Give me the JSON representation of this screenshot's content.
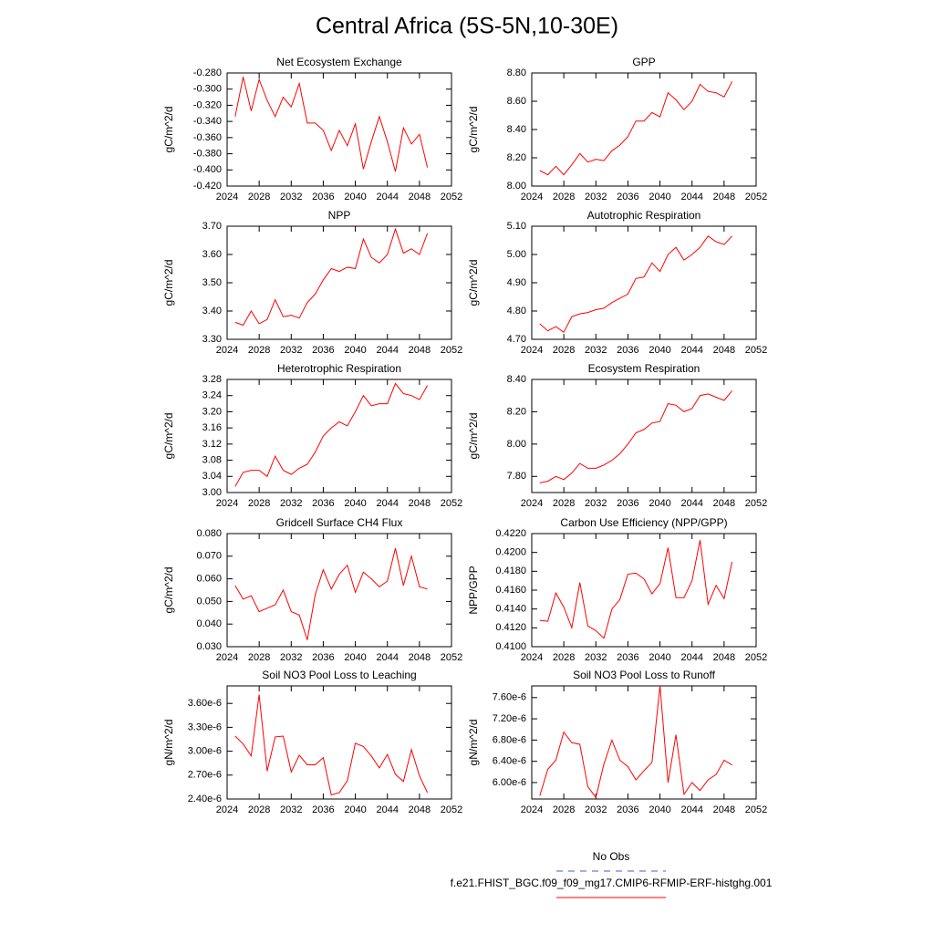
{
  "title": "Central Africa (5S-5N,10-30E)",
  "legend": [
    {
      "name": "No Obs",
      "color": "#5555cc",
      "dashed": true
    },
    {
      "name": "f.e21.FHIST_BGC.f09_f09_mg17.CMIP6-RFMIP-ERF-histghg.001",
      "color": "#ff0000",
      "dashed": false
    }
  ],
  "chart_data": [
    {
      "type": "line",
      "title": "Net Ecosystem Exchange",
      "ylabel": "gC/m^2/d",
      "color": "#ff0000",
      "x": [
        2025,
        2026,
        2027,
        2028,
        2029,
        2030,
        2031,
        2032,
        2033,
        2034,
        2035,
        2036,
        2037,
        2038,
        2039,
        2040,
        2041,
        2042,
        2043,
        2044,
        2045,
        2046,
        2047,
        2048,
        2049
      ],
      "values": [
        -0.334,
        -0.285,
        -0.327,
        -0.288,
        -0.314,
        -0.334,
        -0.31,
        -0.322,
        -0.293,
        -0.342,
        -0.342,
        -0.351,
        -0.376,
        -0.351,
        -0.37,
        -0.343,
        -0.399,
        -0.365,
        -0.334,
        -0.365,
        -0.402,
        -0.348,
        -0.368,
        -0.356,
        -0.397
      ],
      "xlim": [
        2024,
        2052
      ],
      "xticks": [
        2024,
        2028,
        2032,
        2036,
        2040,
        2044,
        2048,
        2052
      ],
      "ylim": [
        -0.42,
        -0.28
      ],
      "yticks": [
        {
          "value": -0.42,
          "label": "-0.420"
        },
        {
          "value": -0.4,
          "label": "-0.400"
        },
        {
          "value": -0.38,
          "label": "-0.380"
        },
        {
          "value": -0.36,
          "label": "-0.360"
        },
        {
          "value": -0.34,
          "label": "-0.340"
        },
        {
          "value": -0.32,
          "label": "-0.320"
        },
        {
          "value": -0.3,
          "label": "-0.300"
        },
        {
          "value": -0.28,
          "label": "-0.280"
        }
      ]
    },
    {
      "type": "line",
      "title": "GPP",
      "ylabel": "gC/m^2/d",
      "color": "#ff0000",
      "x": [
        2025,
        2026,
        2027,
        2028,
        2029,
        2030,
        2031,
        2032,
        2033,
        2034,
        2035,
        2036,
        2037,
        2038,
        2039,
        2040,
        2041,
        2042,
        2043,
        2044,
        2045,
        2046,
        2047,
        2048,
        2049
      ],
      "values": [
        8.11,
        8.08,
        8.14,
        8.08,
        8.15,
        8.23,
        8.17,
        8.19,
        8.18,
        8.25,
        8.29,
        8.35,
        8.46,
        8.46,
        8.52,
        8.49,
        8.66,
        8.61,
        8.54,
        8.6,
        8.72,
        8.67,
        8.66,
        8.63,
        8.74
      ],
      "xlim": [
        2024,
        2052
      ],
      "xticks": [
        2024,
        2028,
        2032,
        2036,
        2040,
        2044,
        2048,
        2052
      ],
      "ylim": [
        8.0,
        8.8
      ],
      "yticks": [
        {
          "value": 8.0,
          "label": "8.00"
        },
        {
          "value": 8.2,
          "label": "8.20"
        },
        {
          "value": 8.4,
          "label": "8.40"
        },
        {
          "value": 8.6,
          "label": "8.60"
        },
        {
          "value": 8.8,
          "label": "8.80"
        }
      ]
    },
    {
      "type": "line",
      "title": "NPP",
      "ylabel": "gC/m^2/d",
      "color": "#ff0000",
      "x": [
        2025,
        2026,
        2027,
        2028,
        2029,
        2030,
        2031,
        2032,
        2033,
        2034,
        2035,
        2036,
        2037,
        2038,
        2039,
        2040,
        2041,
        2042,
        2043,
        2044,
        2045,
        2046,
        2047,
        2048,
        2049
      ],
      "values": [
        3.36,
        3.35,
        3.4,
        3.355,
        3.37,
        3.44,
        3.38,
        3.385,
        3.375,
        3.43,
        3.46,
        3.51,
        3.55,
        3.54,
        3.555,
        3.55,
        3.655,
        3.59,
        3.57,
        3.6,
        3.69,
        3.605,
        3.62,
        3.6,
        3.675
      ],
      "xlim": [
        2024,
        2052
      ],
      "xticks": [
        2024,
        2028,
        2032,
        2036,
        2040,
        2044,
        2048,
        2052
      ],
      "ylim": [
        3.3,
        3.7
      ],
      "yticks": [
        {
          "value": 3.3,
          "label": "3.30"
        },
        {
          "value": 3.4,
          "label": "3.40"
        },
        {
          "value": 3.5,
          "label": "3.50"
        },
        {
          "value": 3.6,
          "label": "3.60"
        },
        {
          "value": 3.7,
          "label": "3.70"
        }
      ]
    },
    {
      "type": "line",
      "title": "Autotrophic Respiration",
      "ylabel": "gC/m^2/d",
      "color": "#ff0000",
      "x": [
        2025,
        2026,
        2027,
        2028,
        2029,
        2030,
        2031,
        2032,
        2033,
        2034,
        2035,
        2036,
        2037,
        2038,
        2039,
        2040,
        2041,
        2042,
        2043,
        2044,
        2045,
        2046,
        2047,
        2048,
        2049
      ],
      "values": [
        4.755,
        4.73,
        4.745,
        4.725,
        4.78,
        4.79,
        4.795,
        4.805,
        4.81,
        4.83,
        4.845,
        4.86,
        4.915,
        4.92,
        4.97,
        4.94,
        5.0,
        5.025,
        4.98,
        5.0,
        5.025,
        5.065,
        5.045,
        5.035,
        5.065
      ],
      "xlim": [
        2024,
        2052
      ],
      "xticks": [
        2024,
        2028,
        2032,
        2036,
        2040,
        2044,
        2048,
        2052
      ],
      "ylim": [
        4.7,
        5.1
      ],
      "yticks": [
        {
          "value": 4.7,
          "label": "4.70"
        },
        {
          "value": 4.8,
          "label": "4.80"
        },
        {
          "value": 4.9,
          "label": "4.90"
        },
        {
          "value": 5.0,
          "label": "5.00"
        },
        {
          "value": 5.1,
          "label": "5.10"
        }
      ]
    },
    {
      "type": "line",
      "title": "Heterotrophic Respiration",
      "ylabel": "gC/m^2/d",
      "color": "#ff0000",
      "x": [
        2025,
        2026,
        2027,
        2028,
        2029,
        2030,
        2031,
        2032,
        2033,
        2034,
        2035,
        2036,
        2037,
        2038,
        2039,
        2040,
        2041,
        2042,
        2043,
        2044,
        2045,
        2046,
        2047,
        2048,
        2049
      ],
      "values": [
        3.015,
        3.05,
        3.055,
        3.055,
        3.04,
        3.09,
        3.055,
        3.045,
        3.06,
        3.07,
        3.1,
        3.14,
        3.16,
        3.175,
        3.165,
        3.2,
        3.24,
        3.215,
        3.22,
        3.22,
        3.27,
        3.245,
        3.24,
        3.23,
        3.265
      ],
      "xlim": [
        2024,
        2052
      ],
      "xticks": [
        2024,
        2028,
        2032,
        2036,
        2040,
        2044,
        2048,
        2052
      ],
      "ylim": [
        3.0,
        3.28
      ],
      "yticks": [
        {
          "value": 3.0,
          "label": "3.00"
        },
        {
          "value": 3.04,
          "label": "3.04"
        },
        {
          "value": 3.08,
          "label": "3.08"
        },
        {
          "value": 3.12,
          "label": "3.12"
        },
        {
          "value": 3.16,
          "label": "3.16"
        },
        {
          "value": 3.2,
          "label": "3.20"
        },
        {
          "value": 3.24,
          "label": "3.24"
        },
        {
          "value": 3.28,
          "label": "3.28"
        }
      ]
    },
    {
      "type": "line",
      "title": "Ecosystem Respiration",
      "ylabel": "gC/m^2/d",
      "color": "#ff0000",
      "x": [
        2025,
        2026,
        2027,
        2028,
        2029,
        2030,
        2031,
        2032,
        2033,
        2034,
        2035,
        2036,
        2037,
        2038,
        2039,
        2040,
        2041,
        2042,
        2043,
        2044,
        2045,
        2046,
        2047,
        2048,
        2049
      ],
      "values": [
        7.76,
        7.77,
        7.8,
        7.78,
        7.82,
        7.88,
        7.85,
        7.85,
        7.87,
        7.9,
        7.94,
        8.0,
        8.07,
        8.09,
        8.13,
        8.14,
        8.25,
        8.24,
        8.2,
        8.22,
        8.3,
        8.31,
        8.29,
        8.27,
        8.33
      ],
      "xlim": [
        2024,
        2052
      ],
      "xticks": [
        2024,
        2028,
        2032,
        2036,
        2040,
        2044,
        2048,
        2052
      ],
      "ylim": [
        7.7,
        8.4
      ],
      "yticks": [
        {
          "value": 7.8,
          "label": "7.80"
        },
        {
          "value": 8.0,
          "label": "8.00"
        },
        {
          "value": 8.2,
          "label": "8.20"
        },
        {
          "value": 8.4,
          "label": "8.40"
        }
      ]
    },
    {
      "type": "line",
      "title": "Gridcell Surface CH4 Flux",
      "ylabel": "gC/m^2/d",
      "color": "#ff0000",
      "x": [
        2025,
        2026,
        2027,
        2028,
        2029,
        2030,
        2031,
        2032,
        2033,
        2034,
        2035,
        2036,
        2037,
        2038,
        2039,
        2040,
        2041,
        2042,
        2043,
        2044,
        2045,
        2046,
        2047,
        2048,
        2049
      ],
      "values": [
        0.057,
        0.051,
        0.0525,
        0.0455,
        0.047,
        0.0485,
        0.055,
        0.0455,
        0.044,
        0.033,
        0.053,
        0.064,
        0.0555,
        0.062,
        0.066,
        0.054,
        0.063,
        0.06,
        0.0565,
        0.059,
        0.0735,
        0.057,
        0.07,
        0.0565,
        0.0555
      ],
      "xlim": [
        2024,
        2052
      ],
      "xticks": [
        2024,
        2028,
        2032,
        2036,
        2040,
        2044,
        2048,
        2052
      ],
      "ylim": [
        0.03,
        0.08
      ],
      "yticks": [
        {
          "value": 0.03,
          "label": "0.030"
        },
        {
          "value": 0.04,
          "label": "0.040"
        },
        {
          "value": 0.05,
          "label": "0.050"
        },
        {
          "value": 0.06,
          "label": "0.060"
        },
        {
          "value": 0.07,
          "label": "0.070"
        },
        {
          "value": 0.08,
          "label": "0.080"
        }
      ]
    },
    {
      "type": "line",
      "title": "Carbon Use Efficiency (NPP/GPP)",
      "ylabel": "NPP/GPP",
      "color": "#ff0000",
      "x": [
        2025,
        2026,
        2027,
        2028,
        2029,
        2030,
        2031,
        2032,
        2033,
        2034,
        2035,
        2036,
        2037,
        2038,
        2039,
        2040,
        2041,
        2042,
        2043,
        2044,
        2045,
        2046,
        2047,
        2048,
        2049
      ],
      "values": [
        0.4128,
        0.4127,
        0.4157,
        0.4142,
        0.412,
        0.4168,
        0.4122,
        0.4117,
        0.4109,
        0.414,
        0.415,
        0.4177,
        0.4178,
        0.4172,
        0.4156,
        0.4167,
        0.4205,
        0.4152,
        0.4152,
        0.417,
        0.4213,
        0.4145,
        0.4165,
        0.4151,
        0.419
      ],
      "xlim": [
        2024,
        2052
      ],
      "xticks": [
        2024,
        2028,
        2032,
        2036,
        2040,
        2044,
        2048,
        2052
      ],
      "ylim": [
        0.41,
        0.422
      ],
      "yticks": [
        {
          "value": 0.41,
          "label": "0.4100"
        },
        {
          "value": 0.412,
          "label": "0.4120"
        },
        {
          "value": 0.414,
          "label": "0.4140"
        },
        {
          "value": 0.416,
          "label": "0.4160"
        },
        {
          "value": 0.418,
          "label": "0.4180"
        },
        {
          "value": 0.42,
          "label": "0.4200"
        },
        {
          "value": 0.422,
          "label": "0.4220"
        }
      ]
    },
    {
      "type": "line",
      "title": "Soil NO3 Pool Loss to Leaching",
      "ylabel": "gN/m^2/d",
      "color": "#ff0000",
      "x": [
        2025,
        2026,
        2027,
        2028,
        2029,
        2030,
        2031,
        2032,
        2033,
        2034,
        2035,
        2036,
        2037,
        2038,
        2039,
        2040,
        2041,
        2042,
        2043,
        2044,
        2045,
        2046,
        2047,
        2048,
        2049
      ],
      "values": [
        3.19e-06,
        3.09e-06,
        2.94e-06,
        3.71e-06,
        2.75e-06,
        3.18e-06,
        3.19e-06,
        2.74e-06,
        2.95e-06,
        2.83e-06,
        2.83e-06,
        2.92e-06,
        2.45e-06,
        2.48e-06,
        2.63e-06,
        3.1e-06,
        3.06e-06,
        2.94e-06,
        2.79e-06,
        2.96e-06,
        2.71e-06,
        2.62e-06,
        3.02e-06,
        2.69e-06,
        2.48e-06
      ],
      "xlim": [
        2024,
        2052
      ],
      "xticks": [
        2024,
        2028,
        2032,
        2036,
        2040,
        2044,
        2048,
        2052
      ],
      "ylim": [
        2.4e-06,
        3.82e-06
      ],
      "yticks": [
        {
          "value": 2.4e-06,
          "label": "2.40e-6"
        },
        {
          "value": 2.7e-06,
          "label": "2.70e-6"
        },
        {
          "value": 3e-06,
          "label": "3.00e-6"
        },
        {
          "value": 3.3e-06,
          "label": "3.30e-6"
        },
        {
          "value": 3.6e-06,
          "label": "3.60e-6"
        }
      ]
    },
    {
      "type": "line",
      "title": "Soil NO3 Pool Loss to Runoff",
      "ylabel": "gN/m^2/d",
      "color": "#ff0000",
      "x": [
        2025,
        2026,
        2027,
        2028,
        2029,
        2030,
        2031,
        2032,
        2033,
        2034,
        2035,
        2036,
        2037,
        2038,
        2039,
        2040,
        2041,
        2042,
        2043,
        2044,
        2045,
        2046,
        2047,
        2048,
        2049
      ],
      "values": [
        5.75e-06,
        6.25e-06,
        6.42e-06,
        6.95e-06,
        6.75e-06,
        6.72e-06,
        5.92e-06,
        5.72e-06,
        6.35e-06,
        6.8e-06,
        6.42e-06,
        6.3e-06,
        6.05e-06,
        6.22e-06,
        6.38e-06,
        7.82e-06,
        6e-06,
        6.9e-06,
        5.78e-06,
        6e-06,
        5.85e-06,
        6.05e-06,
        6.15e-06,
        6.42e-06,
        6.33e-06
      ],
      "xlim": [
        2024,
        2052
      ],
      "xticks": [
        2024,
        2028,
        2032,
        2036,
        2040,
        2044,
        2048,
        2052
      ],
      "ylim": [
        5.69e-06,
        7.82e-06
      ],
      "yticks": [
        {
          "value": 6e-06,
          "label": "6.00e-6"
        },
        {
          "value": 6.4e-06,
          "label": "6.40e-6"
        },
        {
          "value": 6.8e-06,
          "label": "6.80e-6"
        },
        {
          "value": 7.2e-06,
          "label": "7.20e-6"
        },
        {
          "value": 7.6e-06,
          "label": "7.60e-6"
        }
      ]
    }
  ]
}
